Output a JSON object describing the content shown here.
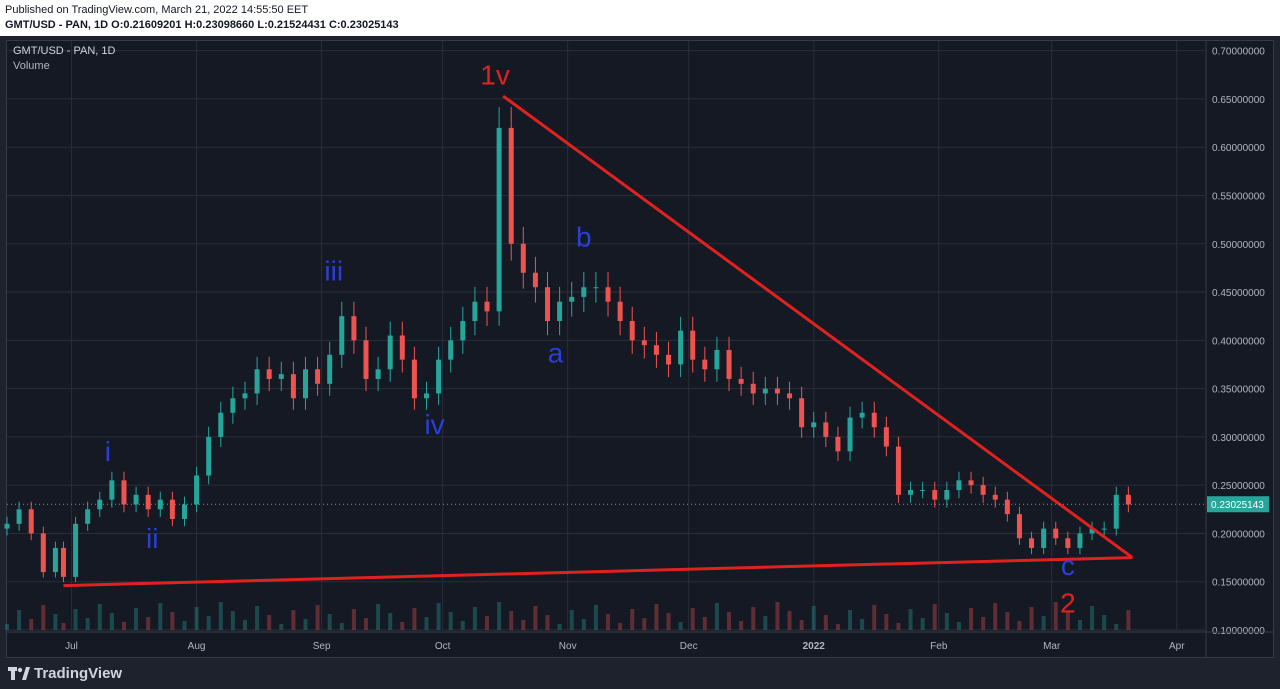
{
  "header": {
    "published": "Published on TradingView.com, March 21, 2022 14:55:50 EET",
    "symbol": "GMT/USD - PAN, 1D",
    "o_label": "O:",
    "o_value": "0.21609201",
    "h_label": "H:",
    "h_value": "0.23098660",
    "l_label": "L:",
    "l_value": "0.21524431",
    "c_label": "C:",
    "c_value": "0.23025143"
  },
  "legend": {
    "title": "GMT/USD - PAN, 1D",
    "subtitle": "Volume"
  },
  "footer": {
    "brand": "TradingView"
  },
  "colors": {
    "up": "#26a69a",
    "down": "#ef5350",
    "wave_blue": "#2b3fd8",
    "wave_red": "#e0221f",
    "trendline": "#e0221f",
    "grid": "#2a2e39",
    "price_tag": "#26a69a"
  },
  "chart_data": {
    "type": "candlestick",
    "ylim": [
      0.1,
      0.71
    ],
    "yticks": [
      "0.70000000",
      "0.65000000",
      "0.60000000",
      "0.55000000",
      "0.50000000",
      "0.45000000",
      "0.40000000",
      "0.35000000",
      "0.30000000",
      "0.25000000",
      "0.20000000",
      "0.15000000",
      "0.10000000"
    ],
    "ytick_values": [
      0.7,
      0.65,
      0.6,
      0.55,
      0.5,
      0.45,
      0.4,
      0.35,
      0.3,
      0.25,
      0.2,
      0.15,
      0.1
    ],
    "xticks": [
      "Jul",
      "Aug",
      "Sep",
      "Oct",
      "Nov",
      "Dec",
      "2022",
      "Feb",
      "Mar",
      "Apr"
    ],
    "xtick_dates": [
      "2021-07-01",
      "2021-08-01",
      "2021-09-01",
      "2021-10-01",
      "2021-11-01",
      "2021-12-01",
      "2022-01-01",
      "2022-02-01",
      "2022-03-01",
      "2022-04-01"
    ],
    "x_range": [
      "2021-06-15",
      "2022-04-08"
    ],
    "last_price": "0.23025143",
    "closes": [
      [
        "2021-06-15",
        0.21
      ],
      [
        "2021-06-18",
        0.225
      ],
      [
        "2021-06-21",
        0.2
      ],
      [
        "2021-06-24",
        0.16
      ],
      [
        "2021-06-27",
        0.185
      ],
      [
        "2021-06-29",
        0.155
      ],
      [
        "2021-07-02",
        0.21
      ],
      [
        "2021-07-05",
        0.225
      ],
      [
        "2021-07-08",
        0.235
      ],
      [
        "2021-07-11",
        0.255
      ],
      [
        "2021-07-14",
        0.23
      ],
      [
        "2021-07-17",
        0.24
      ],
      [
        "2021-07-20",
        0.225
      ],
      [
        "2021-07-23",
        0.235
      ],
      [
        "2021-07-26",
        0.215
      ],
      [
        "2021-07-29",
        0.23
      ],
      [
        "2021-08-01",
        0.26
      ],
      [
        "2021-08-04",
        0.3
      ],
      [
        "2021-08-07",
        0.325
      ],
      [
        "2021-08-10",
        0.34
      ],
      [
        "2021-08-13",
        0.345
      ],
      [
        "2021-08-16",
        0.37
      ],
      [
        "2021-08-19",
        0.36
      ],
      [
        "2021-08-22",
        0.365
      ],
      [
        "2021-08-25",
        0.34
      ],
      [
        "2021-08-28",
        0.37
      ],
      [
        "2021-08-31",
        0.355
      ],
      [
        "2021-09-03",
        0.385
      ],
      [
        "2021-09-06",
        0.425
      ],
      [
        "2021-09-09",
        0.4
      ],
      [
        "2021-09-12",
        0.36
      ],
      [
        "2021-09-15",
        0.37
      ],
      [
        "2021-09-18",
        0.405
      ],
      [
        "2021-09-21",
        0.38
      ],
      [
        "2021-09-24",
        0.34
      ],
      [
        "2021-09-27",
        0.345
      ],
      [
        "2021-09-30",
        0.38
      ],
      [
        "2021-10-03",
        0.4
      ],
      [
        "2021-10-06",
        0.42
      ],
      [
        "2021-10-09",
        0.44
      ],
      [
        "2021-10-12",
        0.43
      ],
      [
        "2021-10-15",
        0.62
      ],
      [
        "2021-10-18",
        0.5
      ],
      [
        "2021-10-21",
        0.47
      ],
      [
        "2021-10-24",
        0.455
      ],
      [
        "2021-10-27",
        0.42
      ],
      [
        "2021-10-30",
        0.44
      ],
      [
        "2021-11-02",
        0.445
      ],
      [
        "2021-11-05",
        0.455
      ],
      [
        "2021-11-08",
        0.455
      ],
      [
        "2021-11-11",
        0.44
      ],
      [
        "2021-11-14",
        0.42
      ],
      [
        "2021-11-17",
        0.4
      ],
      [
        "2021-11-20",
        0.395
      ],
      [
        "2021-11-23",
        0.385
      ],
      [
        "2021-11-26",
        0.375
      ],
      [
        "2021-11-29",
        0.41
      ],
      [
        "2021-12-02",
        0.38
      ],
      [
        "2021-12-05",
        0.37
      ],
      [
        "2021-12-08",
        0.39
      ],
      [
        "2021-12-11",
        0.36
      ],
      [
        "2021-12-14",
        0.355
      ],
      [
        "2021-12-17",
        0.345
      ],
      [
        "2021-12-20",
        0.35
      ],
      [
        "2021-12-23",
        0.345
      ],
      [
        "2021-12-26",
        0.34
      ],
      [
        "2021-12-29",
        0.31
      ],
      [
        "2022-01-01",
        0.315
      ],
      [
        "2022-01-04",
        0.3
      ],
      [
        "2022-01-07",
        0.285
      ],
      [
        "2022-01-10",
        0.32
      ],
      [
        "2022-01-13",
        0.325
      ],
      [
        "2022-01-16",
        0.31
      ],
      [
        "2022-01-19",
        0.29
      ],
      [
        "2022-01-22",
        0.24
      ],
      [
        "2022-01-25",
        0.245
      ],
      [
        "2022-01-28",
        0.245
      ],
      [
        "2022-01-31",
        0.235
      ],
      [
        "2022-02-03",
        0.245
      ],
      [
        "2022-02-06",
        0.255
      ],
      [
        "2022-02-09",
        0.25
      ],
      [
        "2022-02-12",
        0.24
      ],
      [
        "2022-02-15",
        0.235
      ],
      [
        "2022-02-18",
        0.22
      ],
      [
        "2022-02-21",
        0.195
      ],
      [
        "2022-02-24",
        0.185
      ],
      [
        "2022-02-27",
        0.205
      ],
      [
        "2022-03-02",
        0.195
      ],
      [
        "2022-03-05",
        0.185
      ],
      [
        "2022-03-08",
        0.2
      ],
      [
        "2022-03-11",
        0.205
      ],
      [
        "2022-03-14",
        0.205
      ],
      [
        "2022-03-17",
        0.24
      ],
      [
        "2022-03-20",
        0.23
      ]
    ],
    "trendlines": [
      {
        "from": [
          "2021-06-29",
          0.146
        ],
        "to": [
          "2022-03-21",
          0.175
        ]
      },
      {
        "from": [
          "2021-10-16",
          0.653
        ],
        "to": [
          "2022-03-21",
          0.175
        ]
      }
    ],
    "annotations": [
      {
        "text": "i",
        "color": "blue",
        "at": [
          "2021-07-10",
          0.275
        ]
      },
      {
        "text": "ii",
        "color": "blue",
        "at": [
          "2021-07-21",
          0.185
        ]
      },
      {
        "text": "iii",
        "color": "blue",
        "at": [
          "2021-09-04",
          0.462
        ]
      },
      {
        "text": "iv",
        "color": "blue",
        "at": [
          "2021-09-29",
          0.303
        ]
      },
      {
        "text": "1v",
        "color": "red",
        "at": [
          "2021-10-14",
          0.665
        ]
      },
      {
        "text": "a",
        "color": "blue",
        "at": [
          "2021-10-29",
          0.377
        ]
      },
      {
        "text": "b",
        "color": "blue",
        "at": [
          "2021-11-05",
          0.497
        ]
      },
      {
        "text": "c",
        "color": "blue",
        "at": [
          "2022-03-05",
          0.157
        ]
      },
      {
        "text": "2",
        "color": "red",
        "at": [
          "2022-03-05",
          0.118
        ]
      }
    ]
  }
}
